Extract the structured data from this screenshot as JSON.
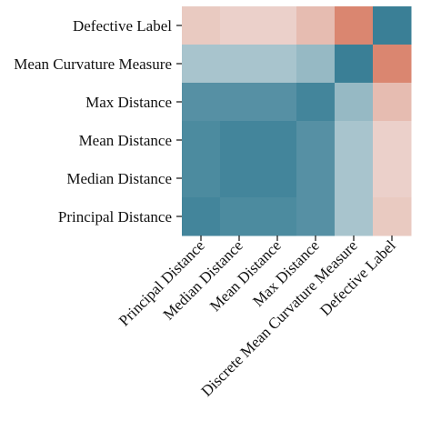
{
  "chart_data": {
    "type": "heatmap",
    "title": "",
    "xlabel": "",
    "ylabel": "",
    "row_labels": [
      "Defective Label",
      "Mean Curvature Measure",
      "Max Distance",
      "Mean Distance",
      "Median Distance",
      "Principal Distance"
    ],
    "col_labels": [
      "Principal Distance",
      "Median Distance",
      "Mean Distance",
      "Max Distance",
      "Discrete Mean Curvature Measure",
      "Defective Label"
    ],
    "values": [
      [
        0.3,
        0.25,
        0.25,
        0.4,
        0.8,
        -1.0
      ],
      [
        -0.4,
        -0.4,
        -0.4,
        -0.5,
        -1.0,
        0.8
      ],
      [
        -0.85,
        -0.85,
        -0.85,
        -0.95,
        -0.5,
        0.4
      ],
      [
        -0.9,
        -0.95,
        -0.95,
        -0.85,
        -0.4,
        0.25
      ],
      [
        -0.9,
        -0.95,
        -0.95,
        -0.85,
        -0.4,
        0.25
      ],
      [
        -0.95,
        -0.9,
        -0.9,
        -0.85,
        -0.4,
        0.3
      ]
    ],
    "colormap": {
      "negative": "#3a7f96",
      "neutral": "#f2f2f2",
      "positive": "#d46b50",
      "range": [
        -1,
        1
      ]
    },
    "colorbar": false,
    "grid": false
  }
}
